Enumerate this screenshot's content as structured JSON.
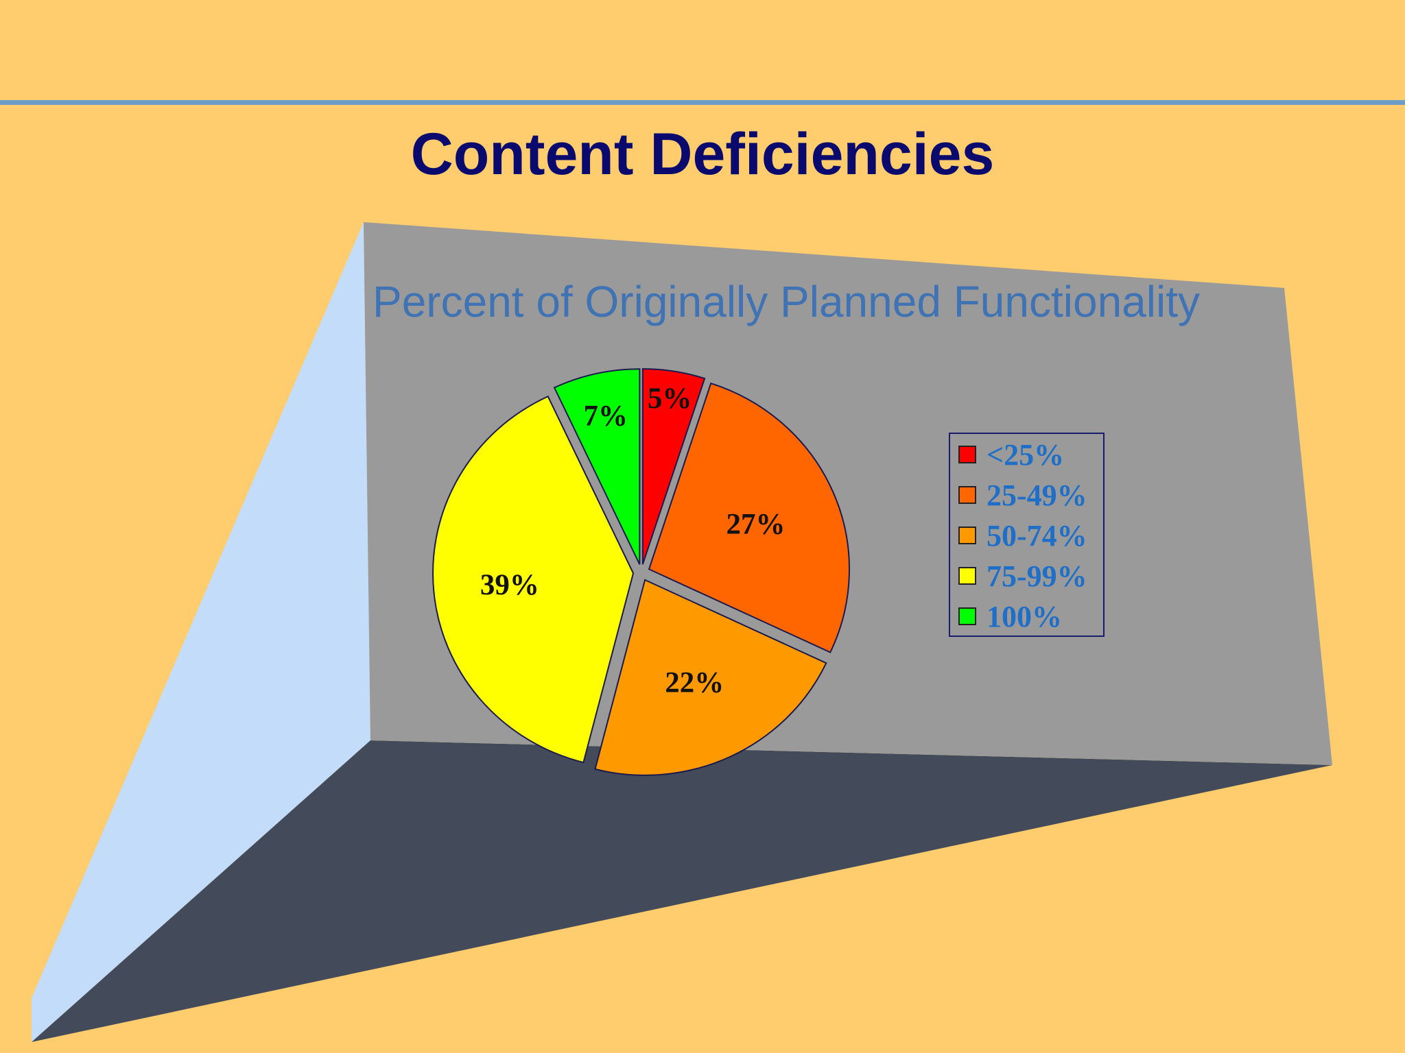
{
  "slide": {
    "title": "Content Deficiencies"
  },
  "chart_data": {
    "type": "pie",
    "title": "Percent of Originally Planned Functionality",
    "categories": [
      "<25%",
      "25-49%",
      "50-74%",
      "75-99%",
      "100%"
    ],
    "values": [
      5,
      27,
      22,
      39,
      7
    ],
    "data_labels": [
      "5%",
      "27%",
      "22%",
      "39%",
      "7%"
    ],
    "colors": [
      "#FF0000",
      "#FF6600",
      "#FF9900",
      "#FFFF00",
      "#00FF00"
    ],
    "exploded": true,
    "three_d_backdrop": true,
    "legend": {
      "position": "right",
      "border_color": "#1A1A6E",
      "text_color": "#1F6FC8"
    },
    "title_color": "#3F73B4",
    "wall_colors": {
      "back": "#9A9A9A",
      "side": "#C2DCFA",
      "floor": "#434A59"
    }
  }
}
